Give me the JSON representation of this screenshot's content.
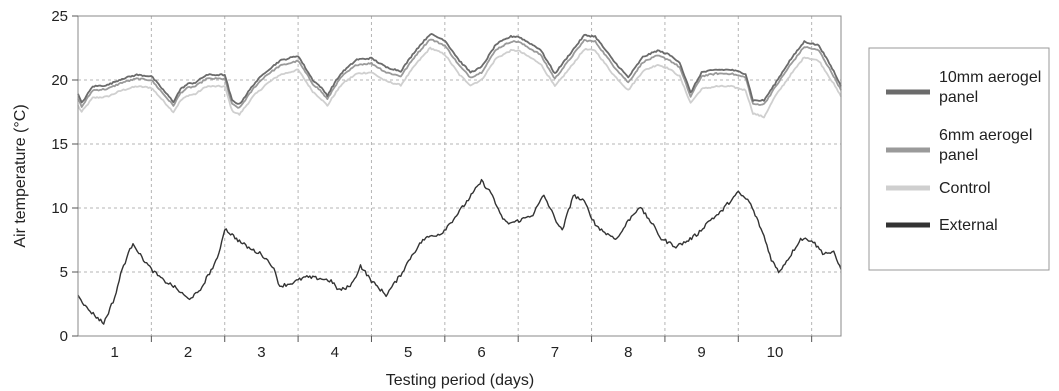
{
  "chart_data": {
    "type": "line",
    "title": "",
    "xlabel": "Testing period (days)",
    "ylabel": "Air temperature (°C)",
    "ylim": [
      0,
      25
    ],
    "xlim": [
      0,
      10.4
    ],
    "yticks": [
      0,
      5,
      10,
      15,
      20,
      25
    ],
    "categories": [
      "1",
      "2",
      "3",
      "4",
      "5",
      "6",
      "7",
      "8",
      "9",
      "10"
    ],
    "grid": true,
    "legend_position": "right",
    "series": [
      {
        "name": "10mm aerogel panel",
        "color": "#6b6b6b",
        "x": [
          0,
          0.05,
          0.2,
          0.4,
          0.6,
          0.8,
          1.0,
          1.3,
          1.4,
          1.5,
          1.6,
          1.75,
          2.0,
          2.1,
          2.2,
          2.4,
          2.5,
          2.55,
          2.75,
          3.0,
          3.2,
          3.3,
          3.4,
          3.5,
          3.6,
          3.8,
          4.0,
          4.2,
          4.4,
          4.6,
          4.8,
          5.0,
          5.2,
          5.35,
          5.5,
          5.7,
          5.9,
          6.0,
          6.3,
          6.5,
          6.7,
          6.9,
          7.05,
          7.3,
          7.5,
          7.7,
          7.9,
          8.05,
          8.2,
          8.35,
          8.5,
          8.7,
          8.9,
          9.1,
          9.2,
          9.35,
          9.5,
          9.7,
          9.9,
          10.1,
          10.3,
          10.4
        ],
        "y": [
          18.9,
          18.2,
          19.5,
          19.6,
          20.1,
          20.4,
          20.3,
          18.3,
          19.3,
          19.7,
          19.8,
          20.4,
          20.4,
          18.4,
          18.1,
          19.7,
          20.3,
          20.6,
          21.5,
          21.9,
          20.0,
          19.5,
          18.8,
          19.8,
          20.6,
          21.6,
          21.7,
          21.0,
          20.7,
          22.3,
          23.6,
          23.1,
          21.5,
          20.6,
          21.0,
          22.8,
          23.4,
          23.4,
          22.4,
          20.5,
          22.0,
          23.5,
          23.4,
          21.5,
          20.2,
          21.8,
          22.3,
          22.0,
          21.4,
          19.0,
          20.6,
          20.8,
          20.8,
          20.5,
          18.4,
          18.4,
          19.7,
          21.5,
          23.0,
          22.7,
          20.7,
          19.5
        ]
      },
      {
        "name": "6mm aerogel panel",
        "color": "#9a9a9a",
        "x": [
          0,
          0.05,
          0.2,
          0.4,
          0.6,
          0.8,
          1.0,
          1.3,
          1.4,
          1.5,
          1.6,
          1.75,
          2.0,
          2.1,
          2.2,
          2.4,
          2.5,
          2.55,
          2.75,
          3.0,
          3.2,
          3.3,
          3.4,
          3.5,
          3.6,
          3.8,
          4.0,
          4.2,
          4.4,
          4.6,
          4.8,
          5.0,
          5.2,
          5.35,
          5.5,
          5.7,
          5.9,
          6.0,
          6.3,
          6.5,
          6.7,
          6.9,
          7.05,
          7.3,
          7.5,
          7.7,
          7.9,
          8.05,
          8.2,
          8.35,
          8.5,
          8.7,
          8.9,
          9.1,
          9.2,
          9.35,
          9.5,
          9.7,
          9.9,
          10.1,
          10.3,
          10.4
        ],
        "y": [
          18.6,
          17.9,
          19.2,
          19.3,
          19.8,
          20.1,
          20.0,
          18.0,
          19.0,
          19.4,
          19.5,
          20.1,
          20.1,
          18.1,
          17.8,
          19.4,
          20.0,
          20.3,
          21.1,
          21.5,
          19.7,
          19.2,
          18.5,
          19.5,
          20.3,
          21.2,
          21.3,
          20.6,
          20.3,
          21.9,
          23.2,
          22.7,
          21.1,
          20.2,
          20.6,
          22.4,
          23.0,
          23.0,
          22.0,
          20.1,
          21.6,
          23.1,
          23.0,
          21.1,
          19.8,
          21.4,
          21.9,
          21.6,
          21.0,
          18.7,
          20.3,
          20.5,
          20.5,
          20.2,
          18.1,
          18.1,
          19.4,
          21.1,
          22.6,
          22.3,
          20.3,
          19.2
        ]
      },
      {
        "name": "Control",
        "color": "#cfcfcf",
        "x": [
          0,
          0.05,
          0.2,
          0.4,
          0.6,
          0.8,
          1.0,
          1.3,
          1.4,
          1.5,
          1.6,
          1.75,
          2.0,
          2.1,
          2.2,
          2.4,
          2.5,
          2.55,
          2.75,
          3.0,
          3.2,
          3.3,
          3.4,
          3.5,
          3.6,
          3.8,
          4.0,
          4.2,
          4.4,
          4.6,
          4.8,
          5.0,
          5.2,
          5.35,
          5.5,
          5.7,
          5.9,
          6.0,
          6.3,
          6.5,
          6.7,
          6.9,
          7.05,
          7.3,
          7.5,
          7.7,
          7.9,
          8.05,
          8.2,
          8.35,
          8.5,
          8.7,
          8.9,
          9.1,
          9.2,
          9.35,
          9.5,
          9.7,
          9.9,
          10.1,
          10.3,
          10.4
        ],
        "y": [
          18.0,
          17.5,
          18.6,
          18.7,
          19.2,
          19.5,
          19.4,
          17.5,
          18.4,
          18.8,
          18.9,
          19.5,
          19.5,
          17.6,
          17.3,
          18.8,
          19.3,
          19.6,
          20.4,
          20.8,
          19.1,
          18.6,
          18.0,
          18.9,
          19.7,
          20.5,
          20.6,
          19.9,
          19.6,
          21.2,
          22.5,
          22.0,
          20.4,
          19.6,
          20.0,
          21.7,
          22.3,
          22.3,
          21.3,
          19.5,
          20.9,
          22.4,
          22.3,
          20.4,
          19.2,
          20.7,
          21.2,
          20.9,
          20.3,
          18.2,
          19.3,
          19.5,
          19.5,
          19.2,
          17.4,
          17.1,
          18.7,
          20.3,
          21.8,
          21.5,
          19.7,
          18.7
        ]
      },
      {
        "name": "External",
        "color": "#333333",
        "x": [
          0,
          0.1,
          0.25,
          0.35,
          0.5,
          0.6,
          0.75,
          0.85,
          1.0,
          1.15,
          1.3,
          1.5,
          1.65,
          1.75,
          1.9,
          2.0,
          2.2,
          2.35,
          2.5,
          2.65,
          2.75,
          2.9,
          3.1,
          3.3,
          3.45,
          3.55,
          3.65,
          3.75,
          3.85,
          4.0,
          4.2,
          4.4,
          4.55,
          4.7,
          4.8,
          4.95,
          5.1,
          5.3,
          5.5,
          5.65,
          5.75,
          5.85,
          5.95,
          6.05,
          6.2,
          6.35,
          6.5,
          6.6,
          6.75,
          6.9,
          7.05,
          7.2,
          7.35,
          7.5,
          7.65,
          7.8,
          7.95,
          8.15,
          8.3,
          8.45,
          8.6,
          8.75,
          8.85,
          9.0,
          9.15,
          9.25,
          9.35,
          9.45,
          9.55,
          9.7,
          9.85,
          10.0,
          10.15,
          10.3,
          10.4
        ],
        "y": [
          3.3,
          2.3,
          1.5,
          1.0,
          3.0,
          5.2,
          7.3,
          6.3,
          5.2,
          4.4,
          3.9,
          2.9,
          3.4,
          4.5,
          6.0,
          8.4,
          7.4,
          6.8,
          6.4,
          5.5,
          3.9,
          4.1,
          4.6,
          4.5,
          4.3,
          3.6,
          3.7,
          4.2,
          5.5,
          4.3,
          3.2,
          4.8,
          6.3,
          7.5,
          7.8,
          8.0,
          9.0,
          10.5,
          12.1,
          11.0,
          9.5,
          8.8,
          8.9,
          9.1,
          9.5,
          11.0,
          9.2,
          8.2,
          11.0,
          10.5,
          8.7,
          8.0,
          7.6,
          9.0,
          10.1,
          9.0,
          7.6,
          7.0,
          7.4,
          8.0,
          9.0,
          9.6,
          10.3,
          11.2,
          10.5,
          9.2,
          7.8,
          6.0,
          5.0,
          6.2,
          7.6,
          7.5,
          6.5,
          6.5,
          5.2
        ]
      }
    ]
  },
  "legend": {
    "items": [
      {
        "line1": "10mm aerogel",
        "line2": "panel",
        "color": "#6b6b6b"
      },
      {
        "line1": "6mm aerogel",
        "line2": "panel",
        "color": "#9a9a9a"
      },
      {
        "line1": "Control",
        "line2": "",
        "color": "#cfcfcf"
      },
      {
        "line1": "External",
        "line2": "",
        "color": "#333333"
      }
    ]
  }
}
